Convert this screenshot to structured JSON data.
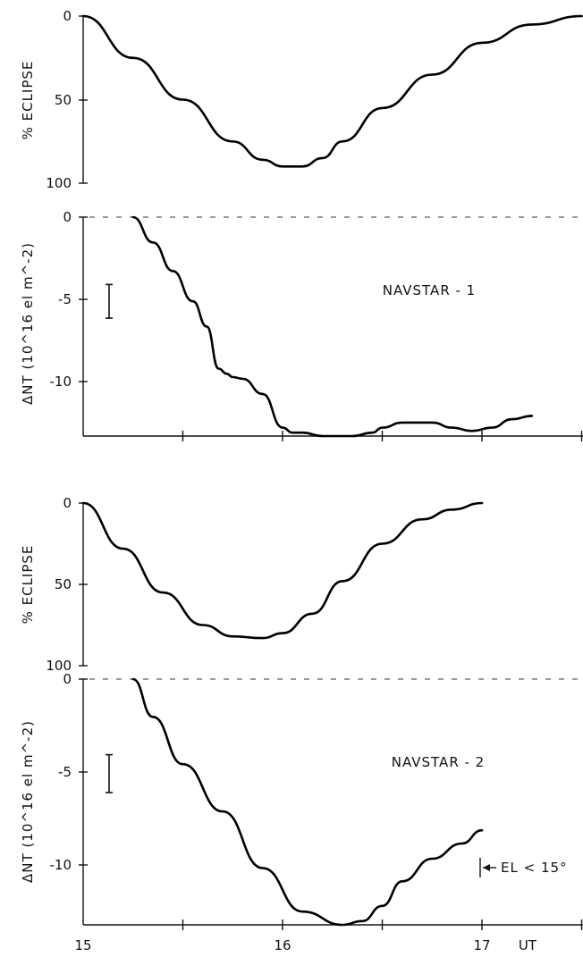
{
  "chart_data": [
    {
      "type": "line",
      "ylabel": "% ECLIPSE",
      "yticks": [
        "0",
        "50",
        "100"
      ],
      "ylim": [
        0,
        100
      ],
      "x": [
        15.0,
        15.25,
        15.5,
        15.75,
        15.9,
        16.0,
        16.1,
        16.2,
        16.3,
        16.5,
        16.75,
        17.0,
        17.25,
        17.5
      ],
      "values": [
        0,
        25,
        50,
        75,
        86,
        90,
        90,
        85,
        75,
        55,
        35,
        16,
        5,
        0
      ]
    },
    {
      "type": "line",
      "ylabel": "ΔNT (10^16 el m^-2)",
      "yticks": [
        "0",
        "-5",
        "-10"
      ],
      "ylim": [
        -13,
        0
      ],
      "annotation": "NAVSTAR - 1",
      "error_bar": {
        "x": 15.13,
        "y": [
          -4,
          -6
        ]
      },
      "x": [
        15.25,
        15.35,
        15.45,
        15.55,
        15.62,
        15.68,
        15.72,
        15.75,
        15.8,
        15.9,
        16.0,
        16.05,
        16.1,
        16.2,
        16.3,
        16.35,
        16.45,
        16.5,
        16.6,
        16.7,
        16.75,
        16.85,
        16.95,
        17.05,
        17.15,
        17.25
      ],
      "values": [
        0,
        -1.5,
        -3.2,
        -5.0,
        -6.5,
        -9.0,
        -9.3,
        -9.5,
        -9.6,
        -10.5,
        -12.5,
        -12.8,
        -12.8,
        -13.0,
        -13.0,
        -13.0,
        -12.8,
        -12.5,
        -12.2,
        -12.2,
        -12.2,
        -12.5,
        -12.7,
        -12.5,
        -12.0,
        -11.8
      ]
    },
    {
      "type": "line",
      "ylabel": "% ECLIPSE",
      "yticks": [
        "0",
        "50",
        "100"
      ],
      "ylim": [
        0,
        100
      ],
      "x": [
        15.0,
        15.2,
        15.4,
        15.6,
        15.75,
        15.9,
        16.0,
        16.15,
        16.3,
        16.5,
        16.7,
        16.85,
        17.0
      ],
      "values": [
        0,
        28,
        55,
        75,
        82,
        83,
        80,
        68,
        48,
        25,
        10,
        4,
        0
      ]
    },
    {
      "type": "line",
      "ylabel": "ΔNT (10^16 el m^-2)",
      "yticks": [
        "0",
        "-5",
        "-10"
      ],
      "ylim": [
        -13,
        0
      ],
      "annotation": "NAVSTAR - 2",
      "side_annotation": "EL < 15°",
      "error_bar": {
        "x": 15.13,
        "y": [
          -4,
          -6
        ]
      },
      "x": [
        15.25,
        15.35,
        15.5,
        15.7,
        15.9,
        16.1,
        16.3,
        16.4,
        16.5,
        16.6,
        16.75,
        16.9,
        17.0
      ],
      "values": [
        0,
        -2.0,
        -4.5,
        -7.0,
        -10.0,
        -12.3,
        -13.0,
        -12.8,
        -12.0,
        -10.7,
        -9.5,
        -8.7,
        -8.0
      ]
    }
  ],
  "x_axis": {
    "ticks": [
      "15",
      "16",
      "17"
    ],
    "unit": "UT"
  }
}
